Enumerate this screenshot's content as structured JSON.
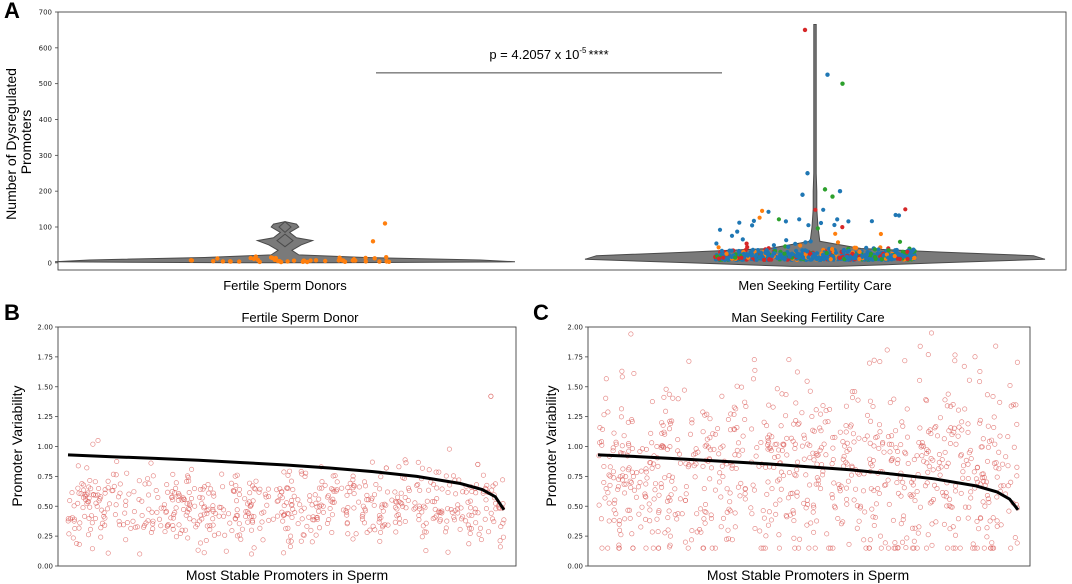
{
  "colors": {
    "violin": "#7a7a7a",
    "violin_edge": "#4a4a4a",
    "donor_points": "#ff7f0e",
    "dot_blue": "#1f77b4",
    "dot_green": "#2ca02c",
    "dot_red": "#d62728",
    "scatter_red": "#d9534f",
    "trend": "#000000"
  },
  "panels": {
    "a_label": "A",
    "b_label": "B",
    "c_label": "C"
  },
  "annotation": {
    "p_text": "p = 4.2057 x 10",
    "p_exp": "-5",
    "p_stars": "****"
  },
  "chart_data": [
    {
      "id": "A",
      "type": "violin",
      "title": "",
      "ylabel": "Number of Dysregulated Promoters",
      "ylabel_lines": [
        "Number of Dysregulated",
        "Promoters"
      ],
      "xlabel": "",
      "ylim": [
        -20,
        700
      ],
      "yticks": [
        0,
        100,
        200,
        300,
        400,
        500,
        600,
        700
      ],
      "categories": [
        "Fertile Sperm Donors",
        "Men Seeking Fertility Care"
      ],
      "violins": [
        {
          "category": "Fertile Sperm Donors",
          "median": 8,
          "min": 0,
          "max": 115,
          "profile": [
            [
              0,
              0.2
            ],
            [
              3,
              1.0
            ],
            [
              8,
              0.85
            ],
            [
              15,
              0.35
            ],
            [
              22,
              0.06
            ],
            [
              35,
              0.03
            ],
            [
              50,
              0.07
            ],
            [
              62,
              0.12
            ],
            [
              70,
              0.05
            ],
            [
              85,
              0.02
            ],
            [
              100,
              0.06
            ],
            [
              108,
              0.05
            ],
            [
              115,
              0.0
            ]
          ],
          "outliers": [
            [
              0.0,
              110
            ],
            [
              -0.03,
              60
            ]
          ]
        },
        {
          "category": "Men Seeking Fertility Care",
          "median": 18,
          "min": -10,
          "max": 665,
          "profile": [
            [
              -10,
              0.1
            ],
            [
              0,
              0.55
            ],
            [
              10,
              1.0
            ],
            [
              20,
              0.95
            ],
            [
              30,
              0.55
            ],
            [
              40,
              0.2
            ],
            [
              60,
              0.08
            ],
            [
              100,
              0.05
            ],
            [
              150,
              0.03
            ],
            [
              200,
              0.03
            ],
            [
              250,
              0.02
            ],
            [
              400,
              0.015
            ],
            [
              600,
              0.012
            ],
            [
              665,
              0.0
            ]
          ],
          "outliers": [
            [
              -0.04,
              650
            ],
            [
              0.05,
              525
            ],
            [
              0.11,
              500
            ],
            [
              -0.03,
              250
            ],
            [
              0.04,
              205
            ],
            [
              0.1,
              200
            ],
            [
              -0.05,
              190
            ],
            [
              0.07,
              185
            ]
          ]
        }
      ],
      "significance": {
        "x1": "Fertile Sperm Donors",
        "x2": "Men Seeking Fertility Care",
        "y": 530
      }
    },
    {
      "id": "B",
      "type": "scatter",
      "title": "Fertile Sperm Donor",
      "xlabel": "Most Stable Promoters in Sperm",
      "ylabel": "Promoter Variability",
      "ylim": [
        0.0,
        2.0
      ],
      "yticks": [
        "0.00",
        "0.25",
        "0.50",
        "0.75",
        "1.00",
        "1.25",
        "1.50",
        "1.75",
        "2.00"
      ],
      "n_points": 620,
      "point_mean": 0.5,
      "point_spread": 0.17,
      "point_range": [
        0.1,
        1.05
      ],
      "extra_points": [
        [
          0.97,
          1.42
        ],
        [
          0.94,
          0.85
        ],
        [
          0.73,
          0.82
        ]
      ],
      "trend": [
        [
          0.0,
          0.93
        ],
        [
          0.1,
          0.915
        ],
        [
          0.2,
          0.9
        ],
        [
          0.3,
          0.885
        ],
        [
          0.4,
          0.865
        ],
        [
          0.5,
          0.845
        ],
        [
          0.6,
          0.82
        ],
        [
          0.7,
          0.79
        ],
        [
          0.8,
          0.75
        ],
        [
          0.9,
          0.69
        ],
        [
          0.95,
          0.64
        ],
        [
          0.98,
          0.58
        ],
        [
          1.0,
          0.47
        ]
      ]
    },
    {
      "id": "C",
      "type": "scatter",
      "title": "Man Seeking Fertility Care",
      "xlabel": "Most Stable Promoters in Sperm",
      "ylabel": "Promoter Variability",
      "ylim": [
        0.0,
        2.0
      ],
      "yticks": [
        "0.00",
        "0.25",
        "0.50",
        "0.75",
        "1.00",
        "1.25",
        "1.50",
        "1.75",
        "2.00"
      ],
      "n_points": 850,
      "point_mean": 0.8,
      "point_spread": 0.4,
      "point_range": [
        0.15,
        1.95
      ],
      "extra_points": [],
      "trend": [
        [
          0.0,
          0.93
        ],
        [
          0.1,
          0.915
        ],
        [
          0.2,
          0.895
        ],
        [
          0.3,
          0.875
        ],
        [
          0.4,
          0.855
        ],
        [
          0.5,
          0.83
        ],
        [
          0.6,
          0.805
        ],
        [
          0.7,
          0.77
        ],
        [
          0.8,
          0.73
        ],
        [
          0.9,
          0.67
        ],
        [
          0.95,
          0.62
        ],
        [
          0.98,
          0.56
        ],
        [
          1.0,
          0.47
        ]
      ]
    }
  ]
}
